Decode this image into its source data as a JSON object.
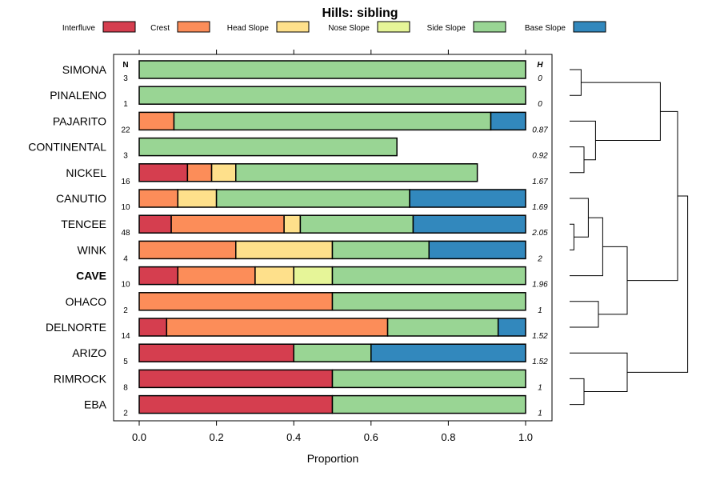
{
  "chart_data": {
    "type": "bar",
    "orientation": "horizontal",
    "stacked": true,
    "title": "Hills: sibling",
    "xlabel": "Proportion",
    "ylabel": "",
    "xlim": [
      0,
      1
    ],
    "xticks": [
      0,
      0.2,
      0.4,
      0.6,
      0.8,
      1
    ],
    "xtick_labels": [
      "0.0",
      "0.2",
      "0.4",
      "0.6",
      "0.8",
      "1.0"
    ],
    "n_header": "N",
    "h_header": "H",
    "highlight": "CAVE",
    "legend": [
      {
        "name": "Interfluve",
        "color": "#d53e4f"
      },
      {
        "name": "Crest",
        "color": "#fc8d59"
      },
      {
        "name": "Head Slope",
        "color": "#fee08b"
      },
      {
        "name": "Nose Slope",
        "color": "#e6f598"
      },
      {
        "name": "Side Slope",
        "color": "#99d594"
      },
      {
        "name": "Base Slope",
        "color": "#3288bd"
      }
    ],
    "rows": [
      {
        "label": "SIMONA",
        "n": "3",
        "h": "0",
        "values": {
          "Side Slope": 1.0
        }
      },
      {
        "label": "PINALENO",
        "n": "1",
        "h": "0",
        "values": {
          "Side Slope": 1.0
        }
      },
      {
        "label": "PAJARITO",
        "n": "22",
        "h": "0.87",
        "values": {
          "Crest": 0.09,
          "Side Slope": 0.82,
          "Base Slope": 0.09
        }
      },
      {
        "label": "CONTINENTAL",
        "n": "3",
        "h": "0.92",
        "values": {
          "Side Slope": 0.667
        }
      },
      {
        "label": "NICKEL",
        "n": "16",
        "h": "1.67",
        "values": {
          "Interfluve": 0.125,
          "Crest": 0.0625,
          "Head Slope": 0.0625,
          "Side Slope": 0.625
        }
      },
      {
        "label": "CANUTIO",
        "n": "10",
        "h": "1.69",
        "values": {
          "Crest": 0.1,
          "Head Slope": 0.1,
          "Side Slope": 0.5,
          "Base Slope": 0.3
        }
      },
      {
        "label": "TENCEE",
        "n": "48",
        "h": "2.05",
        "values": {
          "Interfluve": 0.083,
          "Crest": 0.292,
          "Head Slope": 0.042,
          "Side Slope": 0.292,
          "Base Slope": 0.291
        }
      },
      {
        "label": "WINK",
        "n": "4",
        "h": "2",
        "values": {
          "Crest": 0.25,
          "Head Slope": 0.25,
          "Side Slope": 0.25,
          "Base Slope": 0.25
        }
      },
      {
        "label": "CAVE",
        "n": "10",
        "h": "1.96",
        "values": {
          "Interfluve": 0.1,
          "Crest": 0.2,
          "Head Slope": 0.1,
          "Nose Slope": 0.1,
          "Side Slope": 0.5
        }
      },
      {
        "label": "OHACO",
        "n": "2",
        "h": "1",
        "values": {
          "Crest": 0.5,
          "Side Slope": 0.5
        }
      },
      {
        "label": "DELNORTE",
        "n": "14",
        "h": "1.52",
        "values": {
          "Interfluve": 0.071,
          "Crest": 0.572,
          "Side Slope": 0.286,
          "Base Slope": 0.071
        }
      },
      {
        "label": "ARIZO",
        "n": "5",
        "h": "1.52",
        "values": {
          "Interfluve": 0.4,
          "Side Slope": 0.2,
          "Base Slope": 0.4
        }
      },
      {
        "label": "RIMROCK",
        "n": "8",
        "h": "1",
        "values": {
          "Interfluve": 0.5,
          "Side Slope": 0.5
        }
      },
      {
        "label": "EBA",
        "n": "2",
        "h": "1",
        "values": {
          "Interfluve": 0.5,
          "Side Slope": 0.5
        }
      }
    ],
    "dendrogram": {
      "orientation": "right",
      "merges": [
        {
          "left": "SIMONA",
          "right": "PINALENO",
          "height": 0.08
        },
        {
          "left": "CONTINENTAL",
          "right": "NICKEL",
          "height": 0.1
        },
        {
          "left": "PAJARITO",
          "right": "m1",
          "height": 0.18
        },
        {
          "left": "m0",
          "right": "m2",
          "height": 0.63
        },
        {
          "left": "TENCEE",
          "right": "WINK",
          "height": 0.03
        },
        {
          "left": "CANUTIO",
          "right": "m4",
          "height": 0.13
        },
        {
          "left": "m5",
          "right": "CAVE",
          "height": 0.23
        },
        {
          "left": "OHACO",
          "right": "DELNORTE",
          "height": 0.2
        },
        {
          "left": "m6",
          "right": "m7",
          "height": 0.4
        },
        {
          "left": "m3",
          "right": "m8",
          "height": 0.75
        },
        {
          "left": "RIMROCK",
          "right": "EBA",
          "height": 0.1
        },
        {
          "left": "ARIZO",
          "right": "m10",
          "height": 0.4
        },
        {
          "left": "m9",
          "right": "m11",
          "height": 0.82
        }
      ]
    }
  }
}
